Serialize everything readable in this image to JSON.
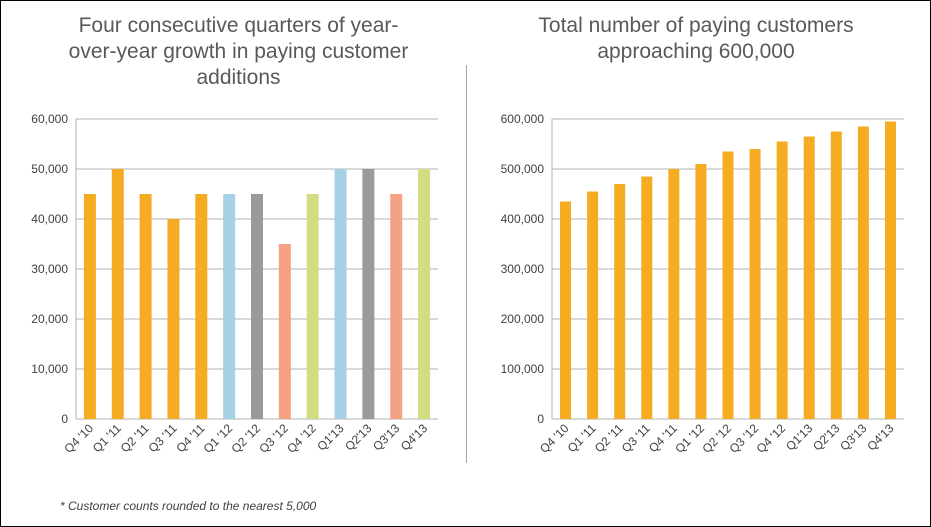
{
  "colors": {
    "orange": "#F5AC23",
    "blue": "#A6D0E4",
    "gray": "#9A9A9A",
    "salmon": "#F4A184",
    "green": "#D4DC82",
    "grid": "#b3b3b3",
    "axis_text": "#404040"
  },
  "footnote": "* Customer counts rounded to the nearest 5,000",
  "chart_data": [
    {
      "type": "bar",
      "title": "Four consecutive quarters of year-over-year growth in paying customer additions",
      "title_lines": [
        "Four consecutive quarters of year-",
        "over-year growth in paying customer",
        "additions"
      ],
      "xlabel": "",
      "ylabel": "",
      "ylim": [
        0,
        60000
      ],
      "y_ticks": [
        0,
        10000,
        20000,
        30000,
        40000,
        50000,
        60000
      ],
      "y_tick_labels": [
        "0",
        "10,000",
        "20,000",
        "30,000",
        "40,000",
        "50,000",
        "60,000"
      ],
      "grid": true,
      "legend": "none",
      "categories": [
        "Q4 '10",
        "Q1 '11",
        "Q2 '11",
        "Q3 '11",
        "Q4 '11",
        "Q1 '12",
        "Q2 '12",
        "Q3 '12",
        "Q4 '12",
        "Q1'13",
        "Q2'13",
        "Q3'13",
        "Q4'13"
      ],
      "values": [
        45000,
        50000,
        45000,
        40000,
        45000,
        45000,
        45000,
        35000,
        45000,
        50000,
        50000,
        45000,
        50000
      ],
      "bar_colors": [
        "orange",
        "orange",
        "orange",
        "orange",
        "orange",
        "blue",
        "gray",
        "salmon",
        "green",
        "blue",
        "gray",
        "salmon",
        "green"
      ]
    },
    {
      "type": "bar",
      "title": "Total number of paying customers approaching 600,000",
      "title_lines": [
        "Total number of paying customers",
        "approaching 600,000"
      ],
      "xlabel": "",
      "ylabel": "",
      "ylim": [
        0,
        600000
      ],
      "y_ticks": [
        0,
        100000,
        200000,
        300000,
        400000,
        500000,
        600000
      ],
      "y_tick_labels": [
        "0",
        "100,000",
        "200,000",
        "300,000",
        "400,000",
        "500,000",
        "600,000"
      ],
      "grid": true,
      "legend": "none",
      "categories": [
        "Q4 '10",
        "Q1 '11",
        "Q2 '11",
        "Q3 '11",
        "Q4 '11",
        "Q1 '12",
        "Q2 '12",
        "Q3 '12",
        "Q4 '12",
        "Q1'13",
        "Q2'13",
        "Q3'13",
        "Q4'13"
      ],
      "values": [
        435000,
        455000,
        470000,
        485000,
        500000,
        510000,
        535000,
        540000,
        555000,
        565000,
        575000,
        585000,
        595000
      ],
      "bar_colors": [
        "orange",
        "orange",
        "orange",
        "orange",
        "orange",
        "orange",
        "orange",
        "orange",
        "orange",
        "orange",
        "orange",
        "orange",
        "orange"
      ]
    }
  ]
}
